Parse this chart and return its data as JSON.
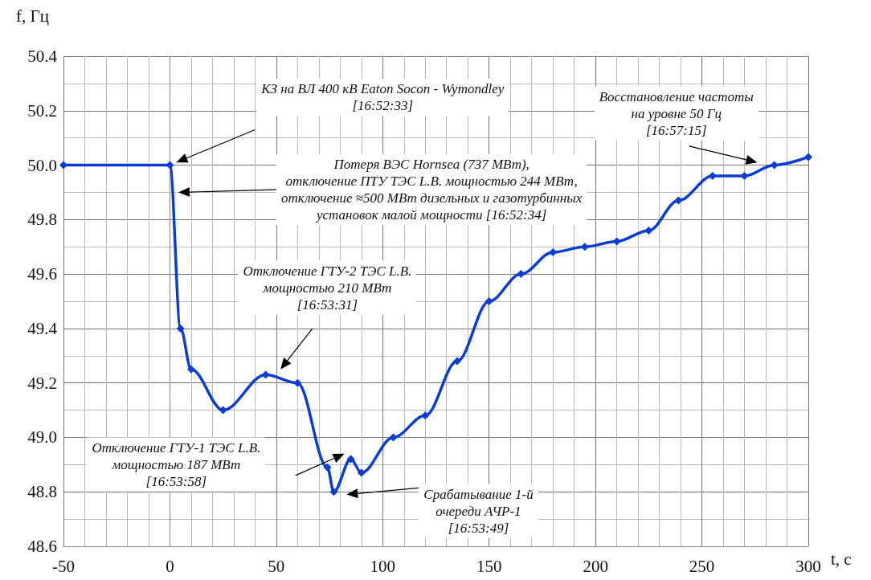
{
  "chart_data": {
    "type": "line",
    "xlabel": "t, с",
    "ylabel": "f, Гц",
    "x": [
      -50,
      0,
      5,
      10,
      25,
      45,
      60,
      74,
      77,
      85,
      90,
      105,
      120,
      135,
      150,
      165,
      180,
      195,
      210,
      225,
      239,
      255,
      270,
      284,
      300
    ],
    "series": [
      {
        "color": "#0a3cd2",
        "values": [
          50.0,
          50.0,
          49.4,
          49.25,
          49.1,
          49.23,
          49.2,
          48.89,
          48.8,
          48.92,
          48.87,
          49.0,
          49.08,
          49.28,
          49.5,
          49.6,
          49.68,
          49.7,
          49.72,
          49.76,
          49.87,
          49.96,
          49.96,
          50.0,
          50.03
        ]
      }
    ],
    "xlim": [
      -50,
      300
    ],
    "xticks": [
      -50,
      0,
      50,
      100,
      150,
      200,
      250,
      300
    ],
    "ylim": [
      48.6,
      50.4
    ],
    "yticks": [
      48.6,
      48.8,
      {
        "value": 49,
        "label": "49.0"
      },
      49.2,
      49.4,
      49.6,
      49.8,
      {
        "value": 50,
        "label": "50.0"
      },
      50.2,
      50.4
    ],
    "grid": true,
    "marker": "diamond",
    "line_style": "solid",
    "annotations": [
      "КЗ на ВЛ 400 кВ Eaton Socon - Wymondley\n[16:52:33]",
      "Потеря ВЭС Hornsea (737 МВт),\nотключение ПТУ ТЭС L.B. мощностью 244 МВт,\nотключение ≈500 МВт дизельных и газотурбинных\nустановок малой мощности [16:52:34]",
      "Отключение ГТУ-2 ТЭС L.B.\nмощностью 210 МВт\n[16:53:31]",
      "Отключение ГТУ-1 ТЭС L.B.\nмощностью 187 МВт\n[16:53:58]",
      "Срабатывание 1-й\nочереди АЧР-1\n[16:53:49]",
      "Восстановление частоты\nна уровне 50 Гц\n[16:57:15]"
    ]
  }
}
